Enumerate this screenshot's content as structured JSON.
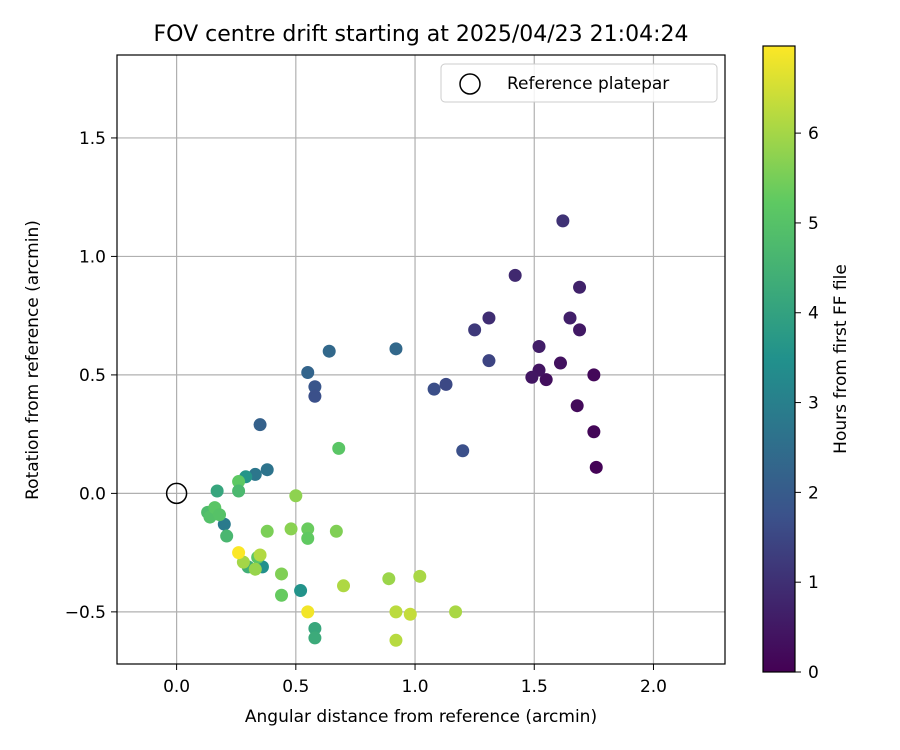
{
  "chart_data": {
    "type": "scatter",
    "title": "FOV centre drift starting at 2025/04/23 21:04:24",
    "xlabel": "Angular distance from reference (arcmin)",
    "ylabel": "Rotation from reference (arcmin)",
    "xlim": [
      -0.25,
      2.3
    ],
    "ylim": [
      -0.72,
      1.85
    ],
    "xticks": [
      0.0,
      0.5,
      1.0,
      1.5,
      2.0
    ],
    "xtick_labels": [
      "0.0",
      "0.5",
      "1.0",
      "1.5",
      "2.0"
    ],
    "yticks": [
      -0.5,
      0.0,
      0.5,
      1.0,
      1.5
    ],
    "ytick_labels": [
      "−0.5",
      "0.0",
      "0.5",
      "1.0",
      "1.5"
    ],
    "grid": true,
    "legend": {
      "position": "top-right",
      "entries": [
        "Reference platepar"
      ]
    },
    "reference": {
      "x": 0.0,
      "y": 0.0,
      "label": "Reference platepar"
    },
    "colorbar": {
      "label": "Hours from first FF file",
      "colormap": "viridis",
      "range": [
        0,
        6.97
      ],
      "ticks": [
        0,
        1,
        2,
        3,
        4,
        5,
        6
      ],
      "tick_labels": [
        "0",
        "1",
        "2",
        "3",
        "4",
        "5",
        "6"
      ]
    },
    "points": [
      {
        "x": 1.76,
        "y": 0.11,
        "t": 0.05
      },
      {
        "x": 1.75,
        "y": 0.26,
        "t": 0.1
      },
      {
        "x": 1.75,
        "y": 0.5,
        "t": 0.15
      },
      {
        "x": 1.68,
        "y": 0.37,
        "t": 0.2
      },
      {
        "x": 1.55,
        "y": 0.48,
        "t": 0.3
      },
      {
        "x": 1.61,
        "y": 0.55,
        "t": 0.35
      },
      {
        "x": 1.52,
        "y": 0.52,
        "t": 0.4
      },
      {
        "x": 1.49,
        "y": 0.49,
        "t": 0.45
      },
      {
        "x": 1.52,
        "y": 0.62,
        "t": 0.6
      },
      {
        "x": 1.69,
        "y": 0.69,
        "t": 0.5
      },
      {
        "x": 1.65,
        "y": 0.74,
        "t": 0.65
      },
      {
        "x": 1.69,
        "y": 0.87,
        "t": 0.7
      },
      {
        "x": 1.62,
        "y": 1.15,
        "t": 1.05
      },
      {
        "x": 1.42,
        "y": 0.92,
        "t": 0.85
      },
      {
        "x": 1.31,
        "y": 0.74,
        "t": 0.95
      },
      {
        "x": 1.25,
        "y": 0.69,
        "t": 1.2
      },
      {
        "x": 1.31,
        "y": 0.56,
        "t": 1.45
      },
      {
        "x": 1.13,
        "y": 0.46,
        "t": 1.55
      },
      {
        "x": 1.08,
        "y": 0.44,
        "t": 1.65
      },
      {
        "x": 1.2,
        "y": 0.18,
        "t": 1.7
      },
      {
        "x": 0.92,
        "y": 0.61,
        "t": 2.35
      },
      {
        "x": 0.64,
        "y": 0.6,
        "t": 2.35
      },
      {
        "x": 0.55,
        "y": 0.51,
        "t": 2.25
      },
      {
        "x": 0.58,
        "y": 0.45,
        "t": 1.85
      },
      {
        "x": 0.58,
        "y": 0.41,
        "t": 1.7
      },
      {
        "x": 0.35,
        "y": 0.29,
        "t": 2.15
      },
      {
        "x": 0.38,
        "y": 0.1,
        "t": 2.65
      },
      {
        "x": 0.33,
        "y": 0.08,
        "t": 2.75
      },
      {
        "x": 0.29,
        "y": 0.07,
        "t": 3.6
      },
      {
        "x": 0.68,
        "y": 0.19,
        "t": 5.1
      },
      {
        "x": 0.2,
        "y": -0.13,
        "t": 2.85
      },
      {
        "x": 0.17,
        "y": 0.01,
        "t": 4.1
      },
      {
        "x": 0.26,
        "y": 0.05,
        "t": 5.2
      },
      {
        "x": 0.26,
        "y": 0.01,
        "t": 4.7
      },
      {
        "x": 0.13,
        "y": -0.08,
        "t": 4.8
      },
      {
        "x": 0.14,
        "y": -0.1,
        "t": 4.95
      },
      {
        "x": 0.16,
        "y": -0.06,
        "t": 5.1
      },
      {
        "x": 0.18,
        "y": -0.09,
        "t": 5.0
      },
      {
        "x": 0.21,
        "y": -0.18,
        "t": 4.65
      },
      {
        "x": 0.5,
        "y": -0.01,
        "t": 5.75
      },
      {
        "x": 0.38,
        "y": -0.16,
        "t": 5.55
      },
      {
        "x": 0.48,
        "y": -0.15,
        "t": 5.7
      },
      {
        "x": 0.55,
        "y": -0.15,
        "t": 5.35
      },
      {
        "x": 0.55,
        "y": -0.19,
        "t": 5.25
      },
      {
        "x": 0.67,
        "y": -0.16,
        "t": 5.6
      },
      {
        "x": 0.36,
        "y": -0.31,
        "t": 3.45
      },
      {
        "x": 0.3,
        "y": -0.31,
        "t": 4.4
      },
      {
        "x": 0.34,
        "y": -0.27,
        "t": 5.1
      },
      {
        "x": 0.33,
        "y": -0.32,
        "t": 5.85
      },
      {
        "x": 0.28,
        "y": -0.29,
        "t": 6.0
      },
      {
        "x": 0.35,
        "y": -0.26,
        "t": 6.15
      },
      {
        "x": 0.26,
        "y": -0.25,
        "t": 6.95
      },
      {
        "x": 0.44,
        "y": -0.34,
        "t": 5.6
      },
      {
        "x": 0.44,
        "y": -0.43,
        "t": 5.3
      },
      {
        "x": 0.52,
        "y": -0.41,
        "t": 3.55
      },
      {
        "x": 0.55,
        "y": -0.5,
        "t": 6.85
      },
      {
        "x": 0.58,
        "y": -0.57,
        "t": 4.15
      },
      {
        "x": 0.58,
        "y": -0.61,
        "t": 4.25
      },
      {
        "x": 0.7,
        "y": -0.39,
        "t": 6.1
      },
      {
        "x": 0.89,
        "y": -0.36,
        "t": 5.9
      },
      {
        "x": 0.92,
        "y": -0.5,
        "t": 6.25
      },
      {
        "x": 0.98,
        "y": -0.51,
        "t": 6.35
      },
      {
        "x": 1.02,
        "y": -0.35,
        "t": 6.05
      },
      {
        "x": 0.92,
        "y": -0.62,
        "t": 6.2
      },
      {
        "x": 1.17,
        "y": -0.5,
        "t": 6.05
      }
    ]
  }
}
